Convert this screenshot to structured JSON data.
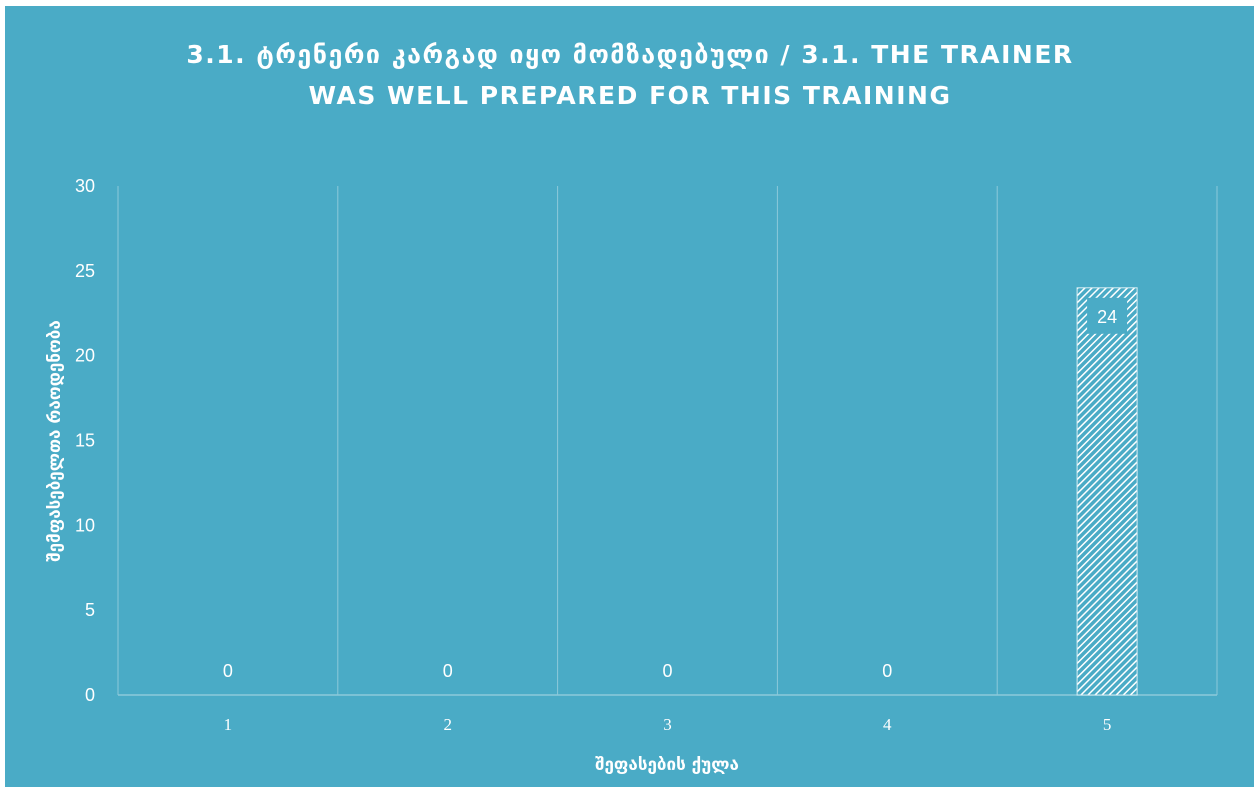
{
  "chart_data": {
    "type": "bar",
    "title": "3.1. ტრენერი კარგად იყო მომზადებული  /  3.1. THE TRAINER WAS WELL PREPARED FOR THIS TRAINING",
    "categories": [
      "1",
      "2",
      "3",
      "4",
      "5"
    ],
    "values": [
      0,
      0,
      0,
      0,
      24
    ],
    "xlabel": "შეფასების ქულა",
    "ylabel": "შემფასებელთა რაოდენობა",
    "ylim": [
      0,
      30
    ],
    "yticks": [
      0,
      5,
      10,
      15,
      20,
      25,
      30
    ],
    "grid": "vertical category dividers",
    "legend": "none",
    "colors": {
      "background": "#4aabc6",
      "bar": "#ffffff",
      "grid": "#8cc9da",
      "text": "#ffffff"
    }
  }
}
